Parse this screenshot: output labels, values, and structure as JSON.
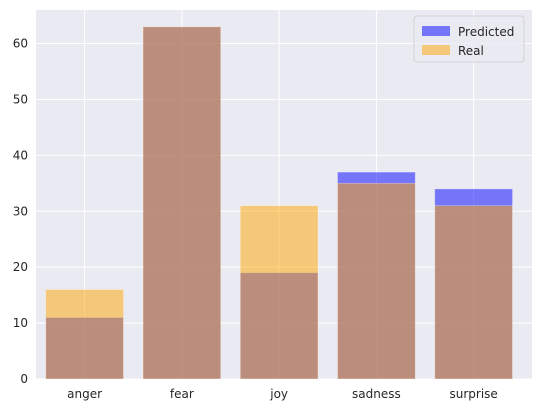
{
  "chart_data": {
    "type": "bar",
    "categories": [
      "anger",
      "fear",
      "joy",
      "sadness",
      "surprise"
    ],
    "series": [
      {
        "name": "Predicted",
        "values": [
          11,
          63,
          19,
          37,
          34
        ],
        "color": "#0000ff",
        "opacity": 0.5
      },
      {
        "name": "Real",
        "values": [
          16,
          63,
          31,
          35,
          31
        ],
        "color": "#ffa500",
        "opacity": 0.5
      }
    ],
    "ylim": [
      0,
      66
    ],
    "yticks": [
      0,
      10,
      20,
      30,
      40,
      50,
      60
    ],
    "grid": true,
    "legend_position": "top-right",
    "background": "#eaeaf2"
  }
}
